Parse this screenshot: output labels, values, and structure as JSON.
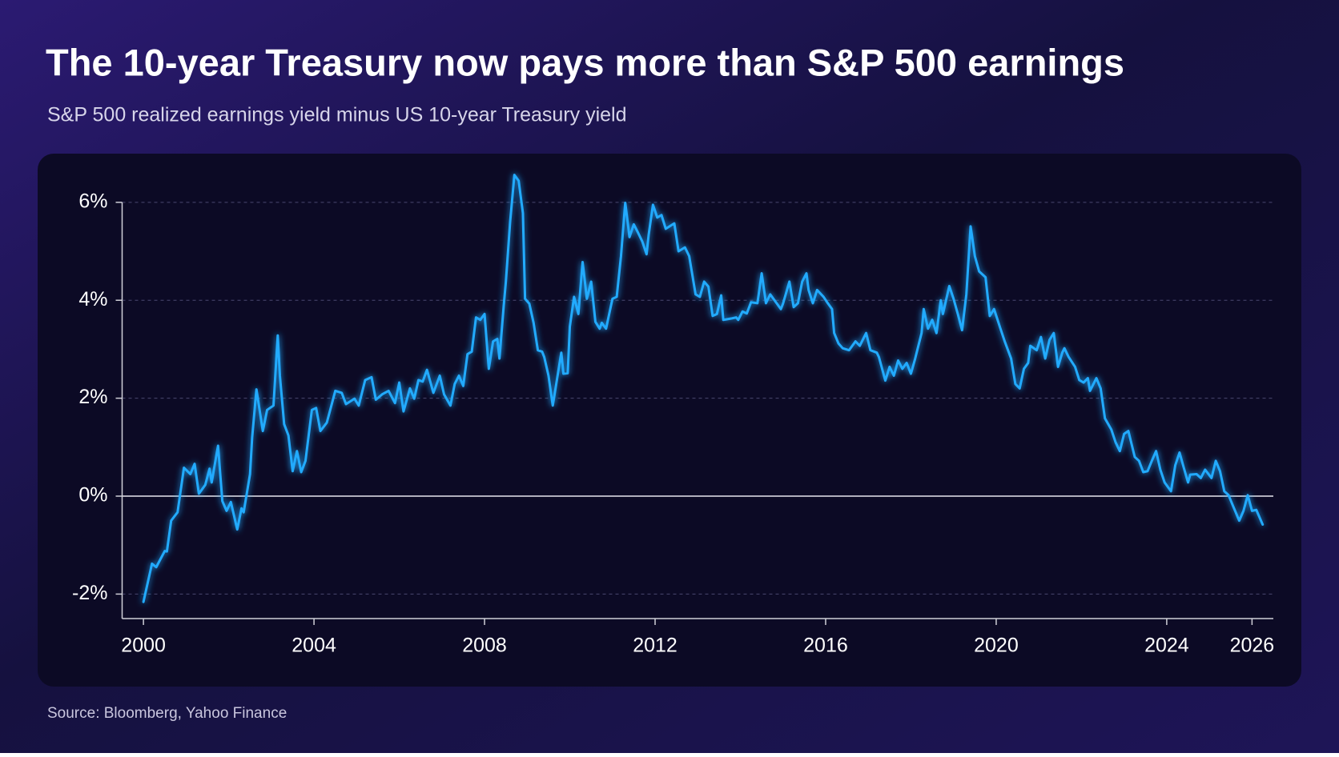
{
  "chart_data": {
    "type": "line",
    "title": "The 10-year Treasury now pays more than S&P 500 earnings",
    "subtitle": "S&P 500 realized earnings yield minus US 10-year Treasury yield",
    "source": "Source: Bloomberg, Yahoo Finance",
    "color": "#23abff",
    "grid": true,
    "xlim": [
      1999.5,
      2026.5
    ],
    "xticks": [
      2000,
      2004,
      2008,
      2012,
      2016,
      2020,
      2024,
      2026
    ],
    "ylim": [
      -2.5,
      6.7
    ],
    "yticks": [
      {
        "value": -2,
        "label": "-2%"
      },
      {
        "value": 0,
        "label": "0%"
      },
      {
        "value": 2,
        "label": "2%"
      },
      {
        "value": 4,
        "label": "4%"
      },
      {
        "value": 6,
        "label": "6%"
      }
    ],
    "x": [
      2000.0,
      2000.2,
      2000.3,
      2000.5,
      2000.55,
      2000.65,
      2000.8,
      2000.95,
      2001.1,
      2001.2,
      2001.3,
      2001.45,
      2001.55,
      2001.6,
      2001.75,
      2001.85,
      2001.95,
      2002.05,
      2002.2,
      2002.3,
      2002.35,
      2002.5,
      2002.55,
      2002.65,
      2002.8,
      2002.9,
      2003.05,
      2003.15,
      2003.2,
      2003.3,
      2003.4,
      2003.5,
      2003.6,
      2003.7,
      2003.8,
      2003.95,
      2004.05,
      2004.15,
      2004.3,
      2004.5,
      2004.65,
      2004.75,
      2004.95,
      2005.05,
      2005.2,
      2005.35,
      2005.45,
      2005.6,
      2005.75,
      2005.9,
      2006.0,
      2006.1,
      2006.25,
      2006.35,
      2006.45,
      2006.55,
      2006.65,
      2006.8,
      2006.95,
      2007.05,
      2007.2,
      2007.3,
      2007.4,
      2007.5,
      2007.6,
      2007.7,
      2007.8,
      2007.9,
      2008.0,
      2008.1,
      2008.2,
      2008.3,
      2008.35,
      2008.45,
      2008.5,
      2008.6,
      2008.7,
      2008.8,
      2008.9,
      2008.95,
      2009.05,
      2009.15,
      2009.25,
      2009.35,
      2009.4,
      2009.5,
      2009.6,
      2009.8,
      2009.85,
      2009.95,
      2010.0,
      2010.1,
      2010.2,
      2010.3,
      2010.4,
      2010.5,
      2010.6,
      2010.7,
      2010.75,
      2010.85,
      2011.0,
      2011.1,
      2011.2,
      2011.3,
      2011.4,
      2011.5,
      2011.6,
      2011.7,
      2011.8,
      2011.85,
      2011.95,
      2012.05,
      2012.15,
      2012.25,
      2012.45,
      2012.55,
      2012.7,
      2012.8,
      2012.95,
      2013.05,
      2013.15,
      2013.25,
      2013.35,
      2013.45,
      2013.55,
      2013.6,
      2013.8,
      2013.9,
      2013.95,
      2014.05,
      2014.15,
      2014.25,
      2014.4,
      2014.5,
      2014.6,
      2014.7,
      2014.85,
      2014.95,
      2015.0,
      2015.15,
      2015.25,
      2015.35,
      2015.45,
      2015.55,
      2015.6,
      2015.7,
      2015.8,
      2015.95,
      2016.05,
      2016.15,
      2016.2,
      2016.3,
      2016.4,
      2016.55,
      2016.7,
      2016.8,
      2016.95,
      2017.05,
      2017.2,
      2017.25,
      2017.4,
      2017.5,
      2017.6,
      2017.7,
      2017.8,
      2017.9,
      2018.0,
      2018.1,
      2018.25,
      2018.3,
      2018.4,
      2018.5,
      2018.6,
      2018.7,
      2018.75,
      2018.9,
      2019.0,
      2019.1,
      2019.2,
      2019.3,
      2019.4,
      2019.5,
      2019.6,
      2019.75,
      2019.85,
      2019.95,
      2020.1,
      2020.2,
      2020.35,
      2020.45,
      2020.55,
      2020.65,
      2020.75,
      2020.8,
      2020.95,
      2021.05,
      2021.15,
      2021.25,
      2021.35,
      2021.45,
      2021.55,
      2021.6,
      2021.7,
      2021.85,
      2021.95,
      2022.05,
      2022.15,
      2022.2,
      2022.35,
      2022.45,
      2022.55,
      2022.7,
      2022.8,
      2022.9,
      2023.0,
      2023.1,
      2023.25,
      2023.35,
      2023.45,
      2023.55,
      2023.65,
      2023.75,
      2023.85,
      2023.95,
      2024.1,
      2024.2,
      2024.3,
      2024.4,
      2024.5,
      2024.55,
      2024.7,
      2024.8,
      2024.9,
      2025.05,
      2025.15,
      2025.25,
      2025.35,
      2025.45,
      2025.55,
      2025.7,
      2025.8,
      2025.9,
      2026.0,
      2026.1,
      2026.25
    ],
    "values": [
      -2.16,
      -1.38,
      -1.45,
      -1.12,
      -1.13,
      -0.5,
      -0.33,
      0.58,
      0.45,
      0.66,
      0.05,
      0.23,
      0.56,
      0.28,
      1.03,
      -0.1,
      -0.3,
      -0.12,
      -0.68,
      -0.25,
      -0.33,
      0.45,
      1.2,
      2.18,
      1.33,
      1.76,
      1.85,
      3.28,
      2.46,
      1.47,
      1.24,
      0.51,
      0.92,
      0.49,
      0.72,
      1.76,
      1.8,
      1.33,
      1.5,
      2.15,
      2.11,
      1.88,
      1.99,
      1.85,
      2.37,
      2.43,
      1.97,
      2.08,
      2.15,
      1.9,
      2.32,
      1.73,
      2.2,
      1.99,
      2.37,
      2.34,
      2.58,
      2.11,
      2.46,
      2.08,
      1.85,
      2.29,
      2.46,
      2.25,
      2.9,
      2.95,
      3.65,
      3.6,
      3.72,
      2.6,
      3.16,
      3.21,
      2.81,
      3.89,
      4.38,
      5.6,
      6.56,
      6.44,
      5.78,
      4.03,
      3.93,
      3.54,
      2.98,
      2.95,
      2.84,
      2.46,
      1.85,
      2.93,
      2.5,
      2.51,
      3.46,
      4.07,
      3.72,
      4.78,
      4.03,
      4.38,
      3.56,
      3.42,
      3.54,
      3.42,
      4.03,
      4.07,
      4.9,
      5.99,
      5.29,
      5.55,
      5.38,
      5.2,
      4.94,
      5.34,
      5.95,
      5.69,
      5.74,
      5.46,
      5.57,
      5.0,
      5.08,
      4.9,
      4.12,
      4.07,
      4.38,
      4.28,
      3.68,
      3.72,
      4.1,
      3.6,
      3.63,
      3.65,
      3.6,
      3.77,
      3.73,
      3.96,
      3.94,
      4.55,
      3.94,
      4.12,
      3.94,
      3.82,
      3.93,
      4.38,
      3.86,
      3.94,
      4.38,
      4.55,
      4.21,
      3.94,
      4.21,
      4.07,
      3.94,
      3.82,
      3.33,
      3.12,
      3.02,
      2.98,
      3.16,
      3.07,
      3.33,
      2.98,
      2.93,
      2.84,
      2.36,
      2.64,
      2.46,
      2.77,
      2.6,
      2.72,
      2.5,
      2.81,
      3.33,
      3.82,
      3.42,
      3.6,
      3.33,
      4.0,
      3.72,
      4.29,
      4.03,
      3.72,
      3.39,
      4.12,
      5.51,
      4.9,
      4.59,
      4.47,
      3.68,
      3.82,
      3.42,
      3.16,
      2.81,
      2.29,
      2.2,
      2.6,
      2.72,
      3.07,
      2.98,
      3.25,
      2.81,
      3.19,
      3.33,
      2.64,
      2.93,
      3.02,
      2.84,
      2.64,
      2.37,
      2.32,
      2.41,
      2.15,
      2.41,
      2.2,
      1.59,
      1.36,
      1.1,
      0.92,
      1.27,
      1.33,
      0.8,
      0.72,
      0.49,
      0.51,
      0.72,
      0.92,
      0.54,
      0.28,
      0.1,
      0.63,
      0.89,
      0.58,
      0.28,
      0.44,
      0.45,
      0.37,
      0.54,
      0.37,
      0.72,
      0.51,
      0.1,
      0.02,
      -0.19,
      -0.5,
      -0.3,
      0.02,
      -0.3,
      -0.28,
      -0.58
    ]
  }
}
